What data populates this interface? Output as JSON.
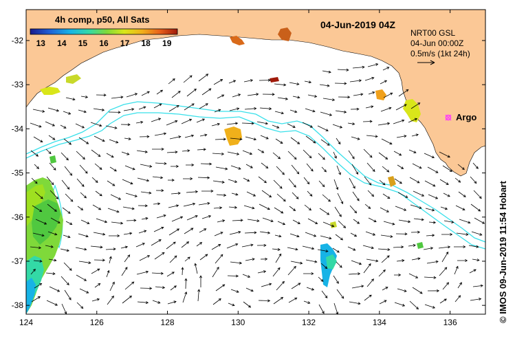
{
  "map": {
    "title": "04-Jun-2019 04Z",
    "colorbar": {
      "label": "4h comp, p50, All Sats",
      "ticks": [
        "13",
        "14",
        "15",
        "16",
        "17",
        "18",
        "19"
      ],
      "min": 12.5,
      "max": 19.5,
      "colors": [
        "#1a1a8c",
        "#1f5fd6",
        "#17b3e6",
        "#33d9a6",
        "#7fd93a",
        "#d9e61a",
        "#f0b01a",
        "#e8601a",
        "#a01a0a"
      ]
    },
    "info": {
      "line1": "NRT00 GSL",
      "line2": "04-Jun 00:00Z",
      "line3": "0.5m/s (1kt 24h)"
    },
    "argo_label": "Argo",
    "credit": "© IMOS 09-Jun-2019 11:54 Hobart",
    "x_axis_ticks": [
      124,
      126,
      128,
      130,
      132,
      134,
      136
    ],
    "y_axis_ticks": [
      -32,
      -33,
      -34,
      -35,
      -36,
      -37,
      -38
    ],
    "lon_range": [
      124,
      137
    ],
    "lat_range": [
      -38.2,
      -31.3
    ],
    "colors": {
      "land": "#fbc896",
      "ocean": "#ffffff",
      "contour": "#38e0ea",
      "argo": "#ff33ff",
      "arrow": "#000000"
    }
  }
}
